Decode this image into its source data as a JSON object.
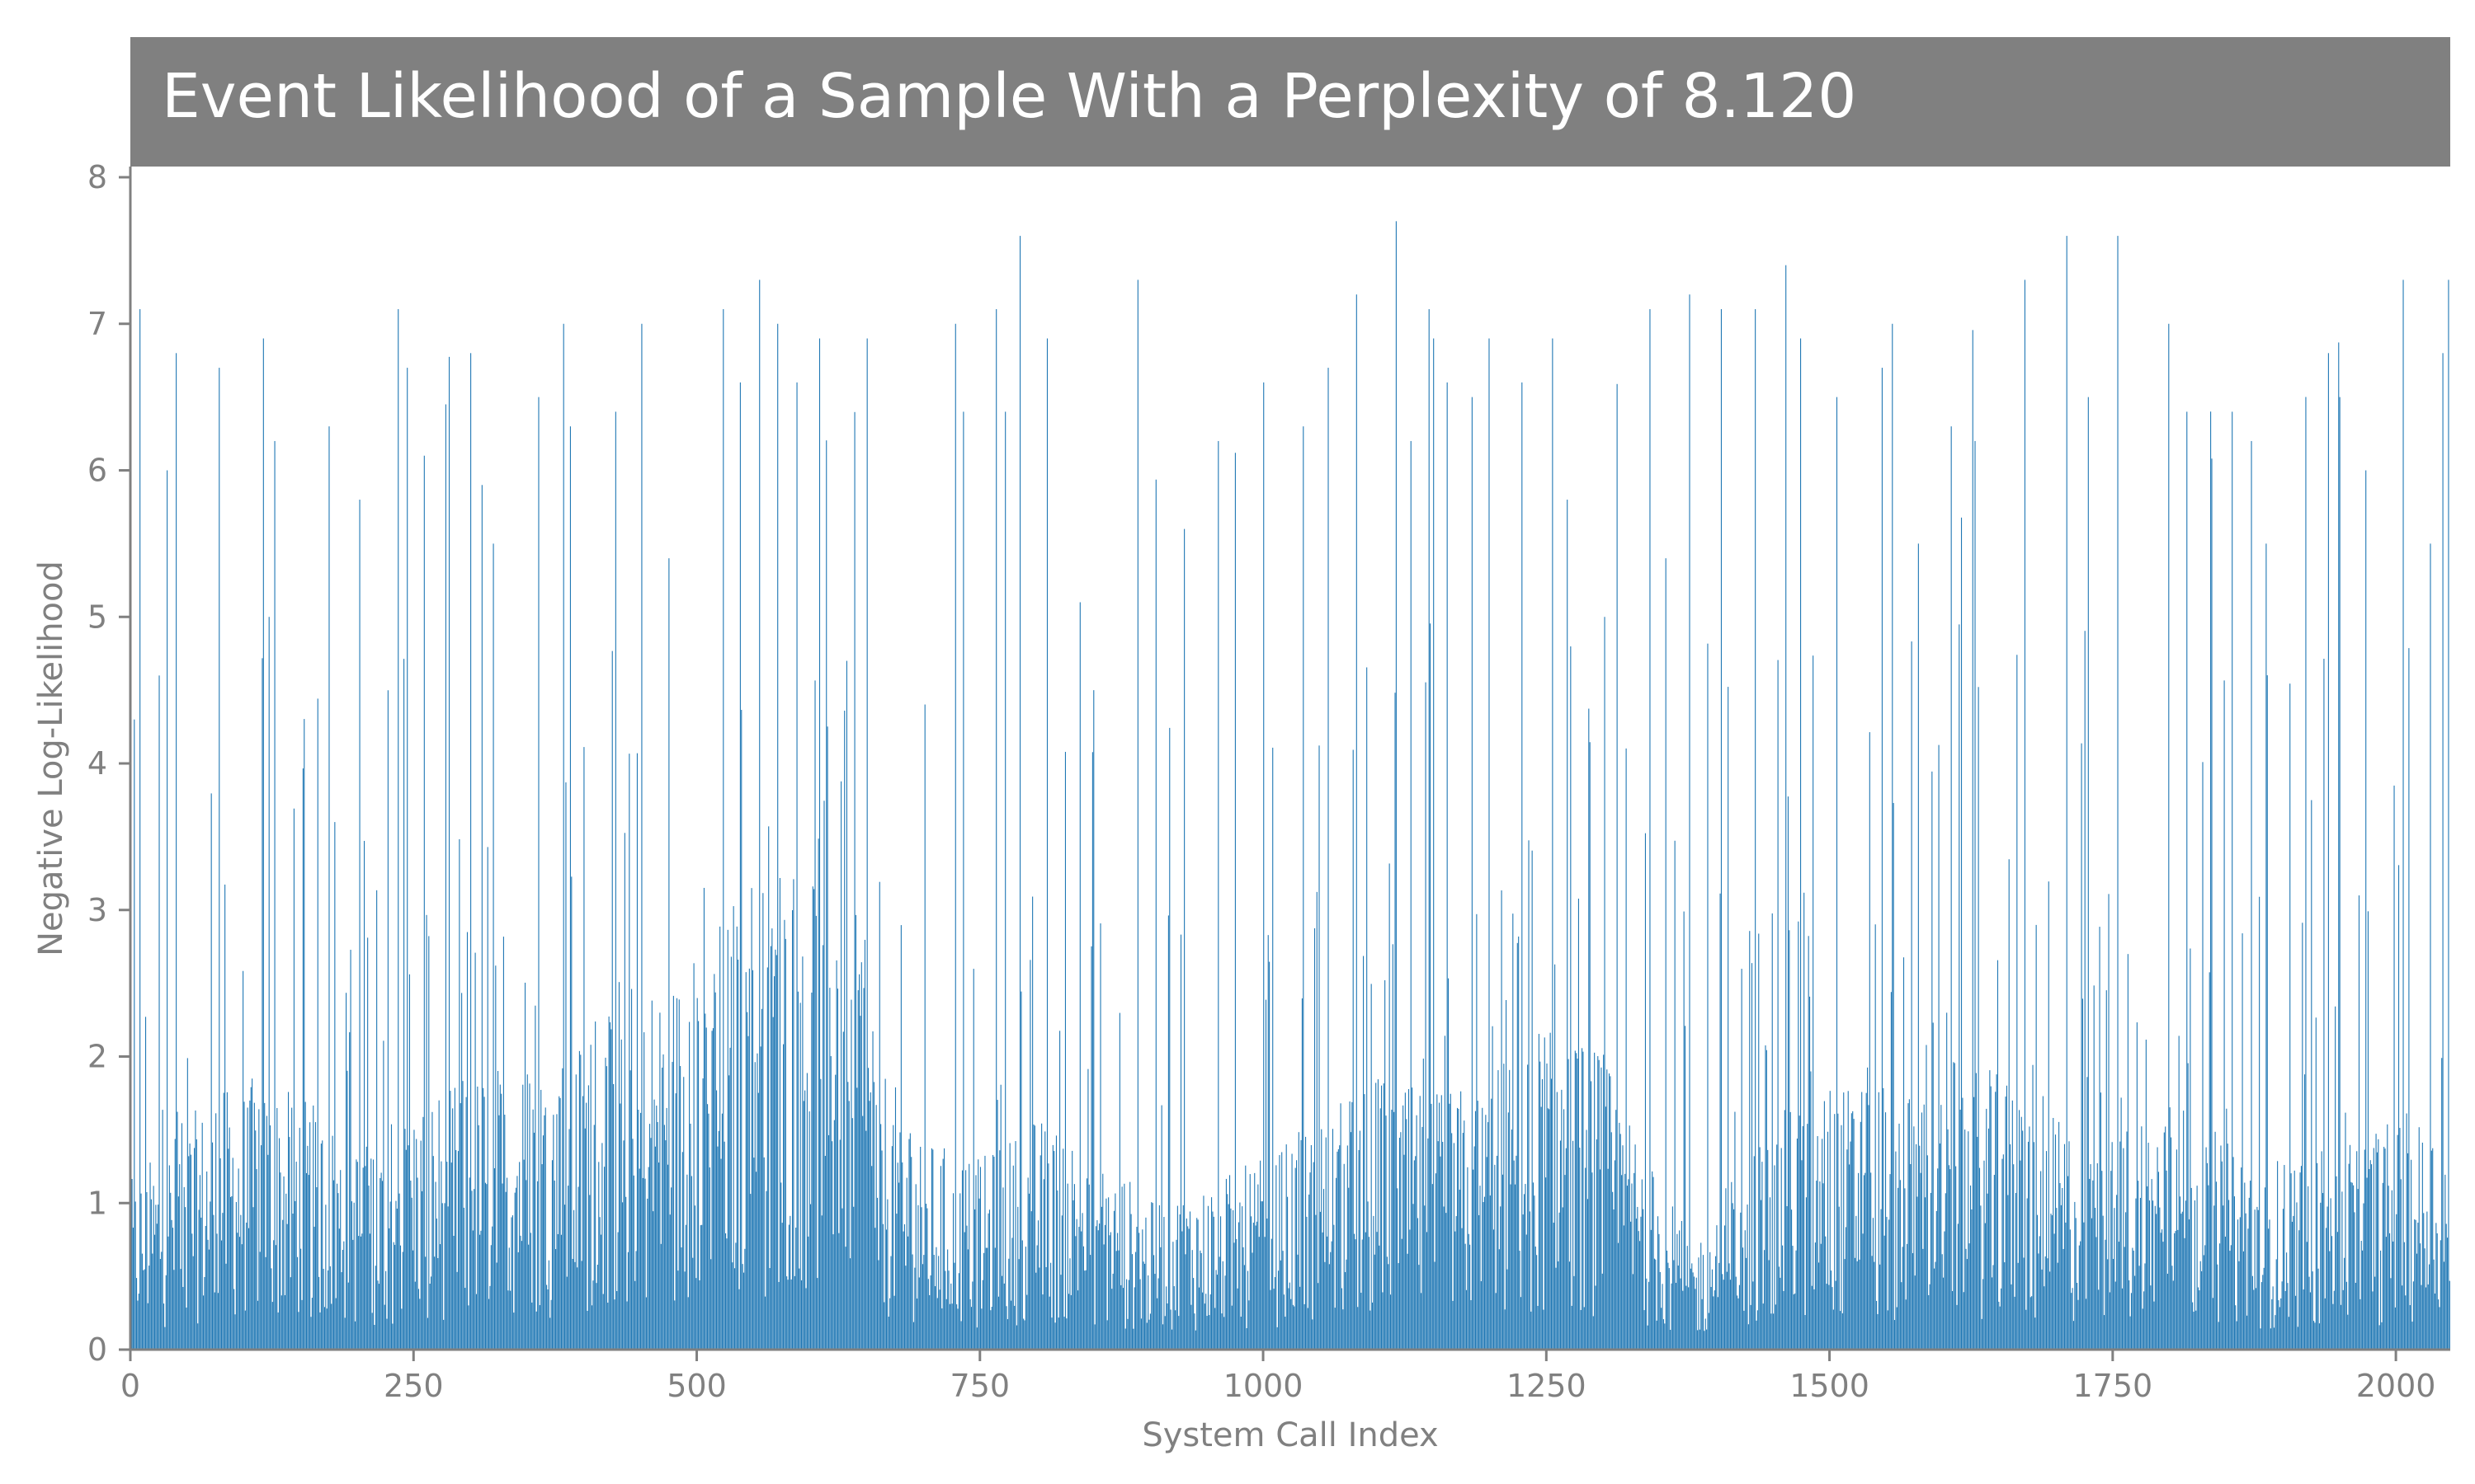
{
  "chart_data": {
    "type": "bar",
    "title": "Event Likelihood of a Sample With a Perplexity of 8.120",
    "xlabel": "System Call Index",
    "ylabel": "Negative Log-Likelihood",
    "xlim": [
      0,
      2048
    ],
    "ylim": [
      0,
      8
    ],
    "x_ticks": [
      0,
      250,
      500,
      750,
      1000,
      1250,
      1500,
      1750,
      2000
    ],
    "y_ticks": [
      0,
      1,
      2,
      3,
      4,
      5,
      6,
      7,
      8
    ],
    "n_points": 2048,
    "grid": false,
    "colors": {
      "bar": "#1f77b4",
      "title_bg": "#808080",
      "axis": "#808080"
    },
    "baseline_profile": [
      [
        0,
        0.8
      ],
      [
        50,
        1.1
      ],
      [
        100,
        1.3
      ],
      [
        150,
        1.2
      ],
      [
        200,
        1.0
      ],
      [
        250,
        1.2
      ],
      [
        300,
        1.3
      ],
      [
        350,
        1.4
      ],
      [
        400,
        1.5
      ],
      [
        450,
        1.6
      ],
      [
        500,
        1.9
      ],
      [
        550,
        2.3
      ],
      [
        600,
        2.5
      ],
      [
        630,
        2.8
      ],
      [
        660,
        1.4
      ],
      [
        700,
        1.0
      ],
      [
        750,
        0.9
      ],
      [
        800,
        1.1
      ],
      [
        850,
        1.0
      ],
      [
        900,
        0.7
      ],
      [
        950,
        0.8
      ],
      [
        1000,
        0.9
      ],
      [
        1050,
        1.1
      ],
      [
        1100,
        1.3
      ],
      [
        1150,
        1.2
      ],
      [
        1200,
        1.3
      ],
      [
        1250,
        1.6
      ],
      [
        1300,
        1.4
      ],
      [
        1350,
        0.8
      ],
      [
        1380,
        0.5
      ],
      [
        1420,
        0.9
      ],
      [
        1470,
        1.2
      ],
      [
        1550,
        1.3
      ],
      [
        1600,
        1.4
      ],
      [
        1650,
        1.3
      ],
      [
        1700,
        1.1
      ],
      [
        1750,
        1.0
      ],
      [
        1800,
        1.2
      ],
      [
        1850,
        1.0
      ],
      [
        1900,
        0.9
      ],
      [
        1950,
        1.0
      ],
      [
        2000,
        1.1
      ],
      [
        2048,
        1.1
      ]
    ],
    "peaks": [
      [
        3,
        4.3
      ],
      [
        8,
        7.1
      ],
      [
        25,
        4.6
      ],
      [
        32,
        6.0
      ],
      [
        40,
        6.8
      ],
      [
        78,
        6.7
      ],
      [
        117,
        6.9
      ],
      [
        122,
        5.0
      ],
      [
        127,
        6.2
      ],
      [
        175,
        6.3
      ],
      [
        180,
        3.6
      ],
      [
        202,
        5.8
      ],
      [
        236,
        7.1
      ],
      [
        244,
        6.7
      ],
      [
        259,
        6.1
      ],
      [
        300,
        6.8
      ],
      [
        310,
        5.9
      ],
      [
        320,
        5.5
      ],
      [
        360,
        6.5
      ],
      [
        382,
        7.0
      ],
      [
        388,
        6.3
      ],
      [
        428,
        6.4
      ],
      [
        451,
        7.0
      ],
      [
        475,
        5.4
      ],
      [
        523,
        7.1
      ],
      [
        538,
        6.6
      ],
      [
        555,
        7.3
      ],
      [
        571,
        7.0
      ],
      [
        588,
        6.6
      ],
      [
        608,
        6.9
      ],
      [
        632,
        4.7
      ],
      [
        650,
        6.9
      ],
      [
        728,
        7.0
      ],
      [
        735,
        6.4
      ],
      [
        764,
        7.1
      ],
      [
        772,
        6.4
      ],
      [
        785,
        7.6
      ],
      [
        809,
        6.9
      ],
      [
        838,
        5.1
      ],
      [
        850,
        4.5
      ],
      [
        889,
        7.3
      ],
      [
        930,
        5.6
      ],
      [
        960,
        6.2
      ],
      [
        1000,
        6.6
      ],
      [
        1035,
        6.3
      ],
      [
        1057,
        6.7
      ],
      [
        1082,
        7.2
      ],
      [
        1117,
        7.7
      ],
      [
        1130,
        6.2
      ],
      [
        1146,
        7.1
      ],
      [
        1150,
        6.9
      ],
      [
        1162,
        6.6
      ],
      [
        1184,
        6.5
      ],
      [
        1199,
        6.9
      ],
      [
        1228,
        6.6
      ],
      [
        1255,
        6.9
      ],
      [
        1268,
        5.8
      ],
      [
        1301,
        5.0
      ],
      [
        1341,
        7.1
      ],
      [
        1355,
        5.4
      ],
      [
        1376,
        7.2
      ],
      [
        1404,
        7.1
      ],
      [
        1434,
        7.1
      ],
      [
        1461,
        7.4
      ],
      [
        1474,
        6.9
      ],
      [
        1506,
        6.5
      ],
      [
        1546,
        6.7
      ],
      [
        1555,
        7.0
      ],
      [
        1578,
        5.5
      ],
      [
        1607,
        6.3
      ],
      [
        1628,
        6.2
      ],
      [
        1672,
        7.3
      ],
      [
        1709,
        7.6
      ],
      [
        1728,
        6.5
      ],
      [
        1754,
        7.6
      ],
      [
        1799,
        7.0
      ],
      [
        1815,
        6.4
      ],
      [
        1855,
        6.4
      ],
      [
        1872,
        6.2
      ],
      [
        1885,
        5.5
      ],
      [
        1940,
        6.8
      ],
      [
        1950,
        6.5
      ],
      [
        1973,
        6.0
      ],
      [
        2006,
        7.3
      ],
      [
        2030,
        5.5
      ],
      [
        2041,
        6.8
      ],
      [
        2046,
        7.3
      ]
    ]
  }
}
